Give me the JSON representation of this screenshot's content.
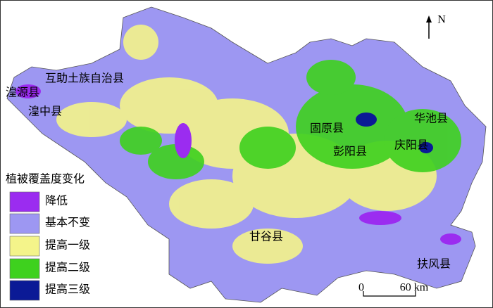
{
  "north": "N",
  "counties": [
    "互助土族自治县",
    "湟源县",
    "湟中县",
    "固原县",
    "彭阳县",
    "华池县",
    "庆阳县",
    "甘谷县",
    "扶风县"
  ],
  "legend": {
    "title": "植被覆盖度变化",
    "items": [
      {
        "label": "降低",
        "color": "#9b2cf0"
      },
      {
        "label": "基本不变",
        "color": "#9d97f2"
      },
      {
        "label": "提高一级",
        "color": "#f4f48a"
      },
      {
        "label": "提高二级",
        "color": "#3ed11e"
      },
      {
        "label": "提高三级",
        "color": "#0b1a96"
      }
    ]
  },
  "scale_bar": {
    "start": "0",
    "end": "60 km"
  }
}
